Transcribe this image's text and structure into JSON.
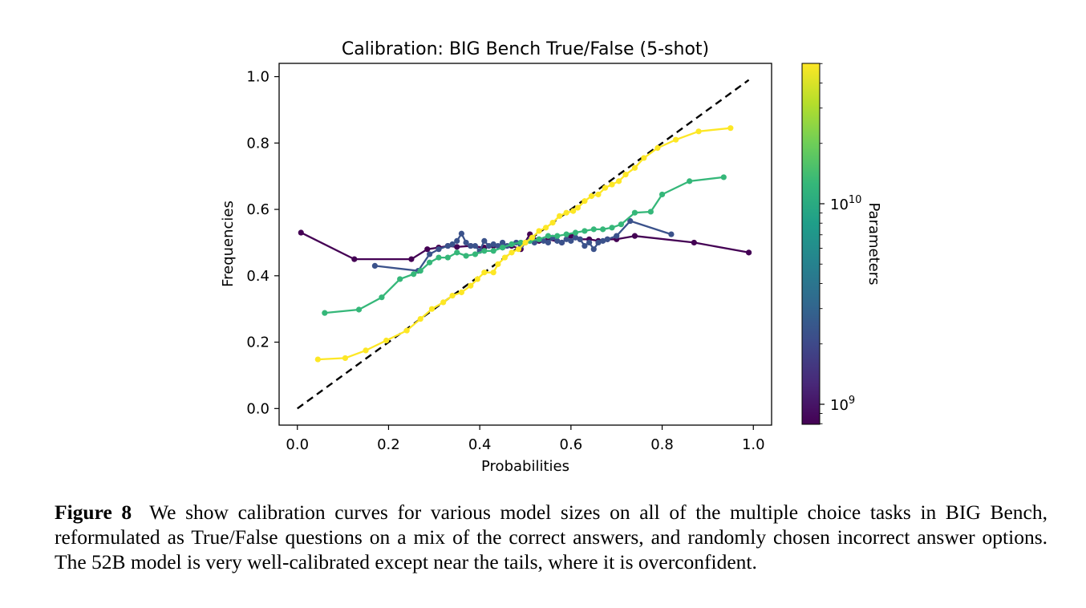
{
  "chart_data": {
    "type": "line",
    "title": "Calibration: BIG Bench True/False (5-shot)",
    "xlabel": "Probabilities",
    "ylabel": "Frequencies",
    "xlim": [
      -0.04,
      1.04
    ],
    "ylim": [
      -0.05,
      1.04
    ],
    "xticks": [
      0.0,
      0.2,
      0.4,
      0.6,
      0.8,
      1.0
    ],
    "xtick_labels": [
      "0.0",
      "0.2",
      "0.4",
      "0.6",
      "0.8",
      "1.0"
    ],
    "yticks": [
      0.0,
      0.2,
      0.4,
      0.6,
      0.8,
      1.0
    ],
    "ytick_labels": [
      "0.0",
      "0.2",
      "0.4",
      "0.6",
      "0.8",
      "1.0"
    ],
    "grid": false,
    "reference_line": {
      "style": "dashed",
      "color": "#000000",
      "x": [
        0.0,
        0.99
      ],
      "y": [
        0.0,
        0.99
      ]
    },
    "colorbar": {
      "label": "Parameters",
      "scale": "log",
      "range_exponents": [
        8.9,
        10.7
      ],
      "ticks": [
        {
          "base": "10",
          "exp": "9",
          "value_exponent": 9
        },
        {
          "base": "10",
          "exp": "10",
          "value_exponent": 10
        }
      ],
      "colors": [
        "#440154",
        "#482878",
        "#3e4989",
        "#31688e",
        "#26828e",
        "#1f9e89",
        "#35b779",
        "#6ece58",
        "#b5de2b",
        "#fde725"
      ]
    },
    "series": [
      {
        "color": "#440154",
        "x": [
          0.008,
          0.125,
          0.25,
          0.285,
          0.31,
          0.33,
          0.35,
          0.38,
          0.41,
          0.43,
          0.45,
          0.47,
          0.49,
          0.51,
          0.53,
          0.55,
          0.58,
          0.6,
          0.62,
          0.64,
          0.66,
          0.68,
          0.7,
          0.74,
          0.87,
          0.99
        ],
        "y": [
          0.53,
          0.45,
          0.45,
          0.48,
          0.485,
          0.49,
          0.487,
          0.49,
          0.485,
          0.49,
          0.485,
          0.49,
          0.48,
          0.525,
          0.505,
          0.51,
          0.5,
          0.52,
          0.51,
          0.51,
          0.505,
          0.51,
          0.51,
          0.52,
          0.5,
          0.47
        ]
      },
      {
        "color": "#3b528b",
        "x": [
          0.17,
          0.265,
          0.29,
          0.31,
          0.33,
          0.34,
          0.35,
          0.36,
          0.37,
          0.38,
          0.39,
          0.4,
          0.41,
          0.42,
          0.43,
          0.44,
          0.45,
          0.46,
          0.47,
          0.48,
          0.49,
          0.5,
          0.51,
          0.52,
          0.53,
          0.54,
          0.55,
          0.56,
          0.57,
          0.58,
          0.59,
          0.6,
          0.61,
          0.62,
          0.63,
          0.64,
          0.65,
          0.66,
          0.67,
          0.68,
          0.7,
          0.73,
          0.82
        ],
        "y": [
          0.43,
          0.415,
          0.465,
          0.48,
          0.49,
          0.495,
          0.505,
          0.527,
          0.5,
          0.49,
          0.49,
          0.475,
          0.505,
          0.49,
          0.495,
          0.49,
          0.5,
          0.49,
          0.495,
          0.5,
          0.49,
          0.5,
          0.505,
          0.5,
          0.51,
          0.505,
          0.5,
          0.515,
          0.505,
          0.5,
          0.51,
          0.505,
          0.515,
          0.51,
          0.49,
          0.5,
          0.48,
          0.5,
          0.505,
          0.51,
          0.52,
          0.565,
          0.525
        ]
      },
      {
        "color": "#35b779",
        "x": [
          0.06,
          0.135,
          0.185,
          0.225,
          0.255,
          0.27,
          0.29,
          0.31,
          0.33,
          0.35,
          0.37,
          0.39,
          0.41,
          0.43,
          0.45,
          0.47,
          0.49,
          0.51,
          0.53,
          0.55,
          0.57,
          0.59,
          0.61,
          0.63,
          0.65,
          0.67,
          0.69,
          0.71,
          0.74,
          0.775,
          0.8,
          0.86,
          0.935
        ],
        "y": [
          0.288,
          0.298,
          0.335,
          0.39,
          0.405,
          0.415,
          0.44,
          0.455,
          0.455,
          0.47,
          0.46,
          0.465,
          0.475,
          0.475,
          0.485,
          0.495,
          0.5,
          0.505,
          0.51,
          0.52,
          0.52,
          0.525,
          0.53,
          0.535,
          0.54,
          0.54,
          0.545,
          0.555,
          0.59,
          0.593,
          0.645,
          0.685,
          0.697
        ]
      },
      {
        "color": "#fde725",
        "x": [
          0.045,
          0.105,
          0.15,
          0.195,
          0.24,
          0.27,
          0.295,
          0.32,
          0.34,
          0.36,
          0.38,
          0.395,
          0.41,
          0.43,
          0.44,
          0.455,
          0.47,
          0.485,
          0.5,
          0.515,
          0.53,
          0.545,
          0.56,
          0.575,
          0.59,
          0.605,
          0.615,
          0.63,
          0.645,
          0.66,
          0.675,
          0.69,
          0.705,
          0.72,
          0.74,
          0.76,
          0.79,
          0.83,
          0.88,
          0.95
        ],
        "y": [
          0.148,
          0.152,
          0.175,
          0.205,
          0.235,
          0.27,
          0.3,
          0.32,
          0.34,
          0.35,
          0.37,
          0.39,
          0.41,
          0.41,
          0.435,
          0.455,
          0.47,
          0.48,
          0.5,
          0.515,
          0.535,
          0.545,
          0.56,
          0.58,
          0.59,
          0.595,
          0.605,
          0.625,
          0.64,
          0.645,
          0.665,
          0.675,
          0.685,
          0.705,
          0.725,
          0.755,
          0.785,
          0.81,
          0.835,
          0.845
        ]
      }
    ]
  },
  "caption": {
    "label": "Figure 8",
    "text": "We show calibration curves for various model sizes on all of the multiple choice tasks in BIG Bench, reformulated as True/False questions on a mix of the correct answers, and randomly chosen incorrect answer options. The 52B model is very well-calibrated except near the tails, where it is overconfident."
  }
}
